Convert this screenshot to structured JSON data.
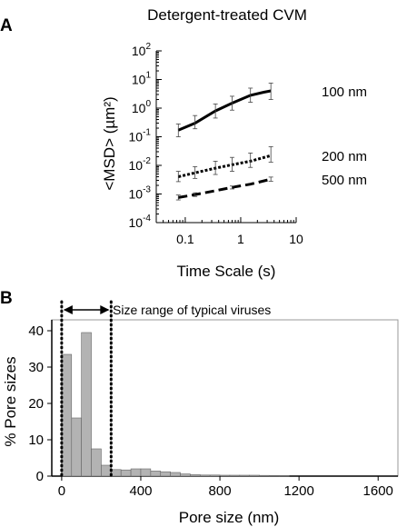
{
  "figure": {
    "panel_a_label": "A",
    "panel_b_label": "B"
  },
  "chart_data": [
    {
      "panel": "A",
      "type": "line",
      "title": "Detergent-treated CVM",
      "xlabel": "Time Scale (s)",
      "ylabel": "<MSD> (µm²)",
      "x_scale": "log",
      "y_scale": "log",
      "xlim": [
        0.03,
        10
      ],
      "ylim": [
        0.0001,
        100
      ],
      "x_ticks": [
        {
          "value": 0.1,
          "label": "0.1"
        },
        {
          "value": 1,
          "label": "1"
        },
        {
          "value": 10,
          "label": "10"
        }
      ],
      "y_ticks": [
        {
          "value": 100,
          "base": "10",
          "exp": "2"
        },
        {
          "value": 10,
          "base": "10",
          "exp": "1"
        },
        {
          "value": 1,
          "base": "10",
          "exp": "0"
        },
        {
          "value": 0.1,
          "base": "10",
          "exp": "-1"
        },
        {
          "value": 0.01,
          "base": "10",
          "exp": "-2"
        },
        {
          "value": 0.001,
          "base": "10",
          "exp": "-3"
        },
        {
          "value": 0.0001,
          "base": "10",
          "exp": "-4"
        }
      ],
      "grid": false,
      "series": [
        {
          "name": "100 nm",
          "line_style": "solid",
          "x": [
            0.075,
            0.15,
            0.35,
            0.7,
            1.5,
            2.6,
            3.5
          ],
          "y": [
            0.17,
            0.3,
            0.8,
            1.5,
            2.8,
            3.6,
            4.0
          ],
          "error_x": [
            0.075,
            0.15,
            0.35,
            0.7,
            1.5,
            3.5
          ],
          "error_low": [
            0.1,
            0.19,
            0.45,
            0.85,
            1.6,
            2.0
          ],
          "error_high": [
            0.28,
            0.55,
            1.4,
            2.6,
            5.0,
            7.5
          ]
        },
        {
          "name": "200 nm",
          "line_style": "dotted",
          "x": [
            0.075,
            0.15,
            0.35,
            0.7,
            1.5,
            3.5
          ],
          "y": [
            0.004,
            0.0055,
            0.008,
            0.0105,
            0.014,
            0.022
          ],
          "error_x": [
            0.075,
            0.15,
            0.35,
            0.7,
            1.5,
            3.5
          ],
          "error_low": [
            0.0027,
            0.0035,
            0.0048,
            0.0062,
            0.0085,
            0.013
          ],
          "error_high": [
            0.0062,
            0.009,
            0.014,
            0.019,
            0.027,
            0.045
          ]
        },
        {
          "name": "500 nm",
          "line_style": "dashed",
          "x": [
            0.075,
            0.15,
            0.35,
            0.7,
            1.5,
            3.5
          ],
          "y": [
            0.00075,
            0.00095,
            0.0013,
            0.0017,
            0.0022,
            0.0033
          ],
          "error_x": [
            0.075,
            0.15,
            0.7,
            3.5
          ],
          "error_low": [
            0.00062,
            0.00082,
            0.0015,
            0.0028
          ],
          "error_high": [
            0.00092,
            0.0011,
            0.0019,
            0.0039
          ]
        }
      ]
    },
    {
      "panel": "B",
      "type": "bar",
      "xlabel": "Pore size (nm)",
      "ylabel": "% Pore sizes",
      "xlim": [
        -50,
        1700
      ],
      "ylim": [
        0,
        43
      ],
      "x_ticks": [
        0,
        400,
        800,
        1200,
        1600
      ],
      "y_ticks": [
        0,
        10,
        20,
        30,
        40
      ],
      "bin_width": 50,
      "bin_starts": [
        0,
        50,
        100,
        150,
        200,
        250,
        300,
        350,
        400,
        450,
        500,
        550,
        600,
        650,
        700,
        750,
        800,
        850,
        900,
        950,
        1000,
        1050,
        1100
      ],
      "values": [
        33.5,
        16,
        39.5,
        7.5,
        3,
        1.8,
        1.7,
        2.0,
        2.0,
        1.4,
        1.2,
        1.0,
        0.6,
        0.4,
        0.3,
        0.3,
        0.25,
        0.25,
        0.25,
        0.25,
        0.2,
        0.15,
        0.1
      ],
      "bar_color": "#b3b3b3",
      "range_marker": {
        "x_start": 0,
        "x_end": 250,
        "label": "Size range of typical viruses"
      }
    }
  ]
}
